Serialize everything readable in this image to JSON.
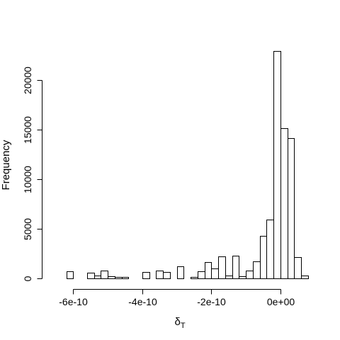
{
  "chart_data": {
    "type": "bar",
    "subtype": "histogram",
    "title": "",
    "xlabel": "δT",
    "xlabel_main": "δ",
    "xlabel_sub": "T",
    "ylabel": "Frequency",
    "xlim": [
      -6.6e-10,
      8e-11
    ],
    "ylim": [
      0,
      22900
    ],
    "bin_width": 2e-11,
    "x_ticks": [
      {
        "value": -6e-10,
        "label": "-6e-10"
      },
      {
        "value": -4e-10,
        "label": "-4e-10"
      },
      {
        "value": -2e-10,
        "label": "-2e-10"
      },
      {
        "value": 0,
        "label": "0e+00"
      }
    ],
    "y_ticks": [
      {
        "value": 0,
        "label": "0"
      },
      {
        "value": 5000,
        "label": "5000"
      },
      {
        "value": 10000,
        "label": "10000"
      },
      {
        "value": 15000,
        "label": "15000"
      },
      {
        "value": 20000,
        "label": "20000"
      }
    ],
    "bins": [
      {
        "x0": -6.6e-10,
        "x1": -6.4e-10,
        "count": 0
      },
      {
        "x0": -6.4e-10,
        "x1": -6.2e-10,
        "count": 0
      },
      {
        "x0": -6.2e-10,
        "x1": -6e-10,
        "count": 700
      },
      {
        "x0": -6e-10,
        "x1": -5.8e-10,
        "count": 0
      },
      {
        "x0": -5.8e-10,
        "x1": -5.6e-10,
        "count": 0
      },
      {
        "x0": -5.6e-10,
        "x1": -5.4e-10,
        "count": 550
      },
      {
        "x0": -5.4e-10,
        "x1": -5.2e-10,
        "count": 250
      },
      {
        "x0": -5.2e-10,
        "x1": -5e-10,
        "count": 820
      },
      {
        "x0": -5e-10,
        "x1": -4.8e-10,
        "count": 200
      },
      {
        "x0": -4.8e-10,
        "x1": -4.6e-10,
        "count": 120
      },
      {
        "x0": -4.6e-10,
        "x1": -4.4e-10,
        "count": 150
      },
      {
        "x0": -4.4e-10,
        "x1": -4.2e-10,
        "count": 0
      },
      {
        "x0": -4.2e-10,
        "x1": -4e-10,
        "count": 0
      },
      {
        "x0": -4e-10,
        "x1": -3.8e-10,
        "count": 620
      },
      {
        "x0": -3.8e-10,
        "x1": -3.6e-10,
        "count": 0
      },
      {
        "x0": -3.6e-10,
        "x1": -3.4e-10,
        "count": 820
      },
      {
        "x0": -3.4e-10,
        "x1": -3.2e-10,
        "count": 640
      },
      {
        "x0": -3.2e-10,
        "x1": -3e-10,
        "count": 0
      },
      {
        "x0": -3e-10,
        "x1": -2.8e-10,
        "count": 1230
      },
      {
        "x0": -2.8e-10,
        "x1": -2.6e-10,
        "count": 0
      },
      {
        "x0": -2.6e-10,
        "x1": -2.4e-10,
        "count": 120
      },
      {
        "x0": -2.4e-10,
        "x1": -2.2e-10,
        "count": 730
      },
      {
        "x0": -2.2e-10,
        "x1": -2e-10,
        "count": 1660
      },
      {
        "x0": -2e-10,
        "x1": -1.8e-10,
        "count": 1020
      },
      {
        "x0": -1.8e-10,
        "x1": -1.6e-10,
        "count": 2240
      },
      {
        "x0": -1.6e-10,
        "x1": -1.4e-10,
        "count": 320
      },
      {
        "x0": -1.4e-10,
        "x1": -1.2e-10,
        "count": 2270
      },
      {
        "x0": -1.2e-10,
        "x1": -1e-10,
        "count": 230
      },
      {
        "x0": -1e-10,
        "x1": -8e-11,
        "count": 780
      },
      {
        "x0": -8e-11,
        "x1": -6e-11,
        "count": 1690
      },
      {
        "x0": -6e-11,
        "x1": -4e-11,
        "count": 4260
      },
      {
        "x0": -4e-11,
        "x1": -2e-11,
        "count": 5900
      },
      {
        "x0": -2e-11,
        "x1": 0.0,
        "count": 22900
      },
      {
        "x0": 0.0,
        "x1": 2e-11,
        "count": 15150
      },
      {
        "x0": 2e-11,
        "x1": 4e-11,
        "count": 14100
      },
      {
        "x0": 4e-11,
        "x1": 6e-11,
        "count": 2150
      },
      {
        "x0": 6e-11,
        "x1": 8e-11,
        "count": 280
      }
    ],
    "grid": false,
    "legend": "none"
  }
}
